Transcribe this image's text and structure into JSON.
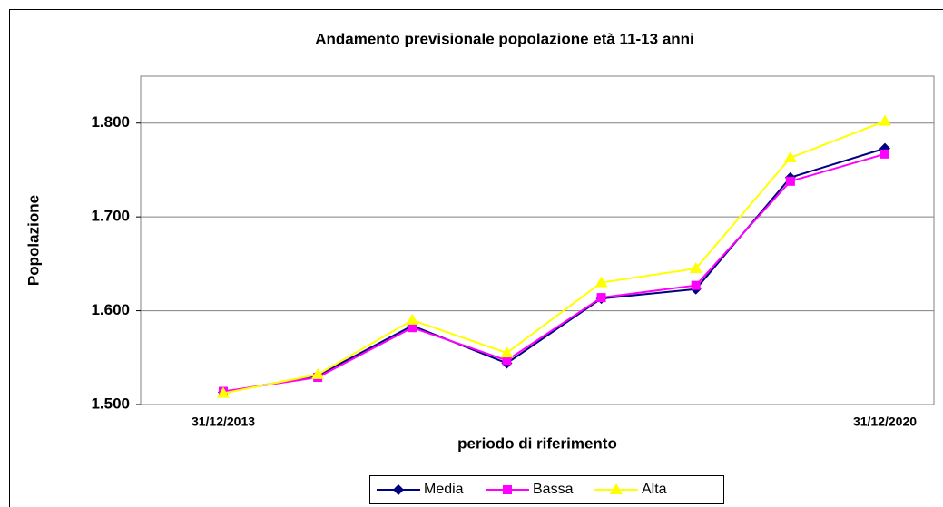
{
  "chart_data": {
    "type": "line",
    "title": "Andamento previsionale popolazione età 11-13 anni",
    "xlabel": "periodo di riferimento",
    "ylabel": "Popolazione",
    "categories": [
      "31/12/2013",
      null,
      null,
      null,
      null,
      null,
      null,
      "31/12/2020"
    ],
    "series": [
      {
        "name": "Media",
        "color": "#000080",
        "marker": "diamond",
        "values": [
          1513,
          1531,
          1584,
          1544,
          1613,
          1623,
          1742,
          1773
        ]
      },
      {
        "name": "Bassa",
        "color": "#ff00ff",
        "marker": "square",
        "values": [
          1514,
          1529,
          1582,
          1547,
          1614,
          1627,
          1738,
          1767
        ]
      },
      {
        "name": "Alta",
        "color": "#ffff00",
        "marker": "triangle",
        "values": [
          1512,
          1532,
          1590,
          1555,
          1630,
          1645,
          1763,
          1802
        ]
      }
    ],
    "ylim": [
      1500,
      1850
    ],
    "yticks": [
      {
        "value": 1500,
        "label": "1.500"
      },
      {
        "value": 1600,
        "label": "1.600"
      },
      {
        "value": 1700,
        "label": "1.700"
      },
      {
        "value": 1800,
        "label": "1.800"
      }
    ],
    "grid": true,
    "legend": "bottom"
  }
}
